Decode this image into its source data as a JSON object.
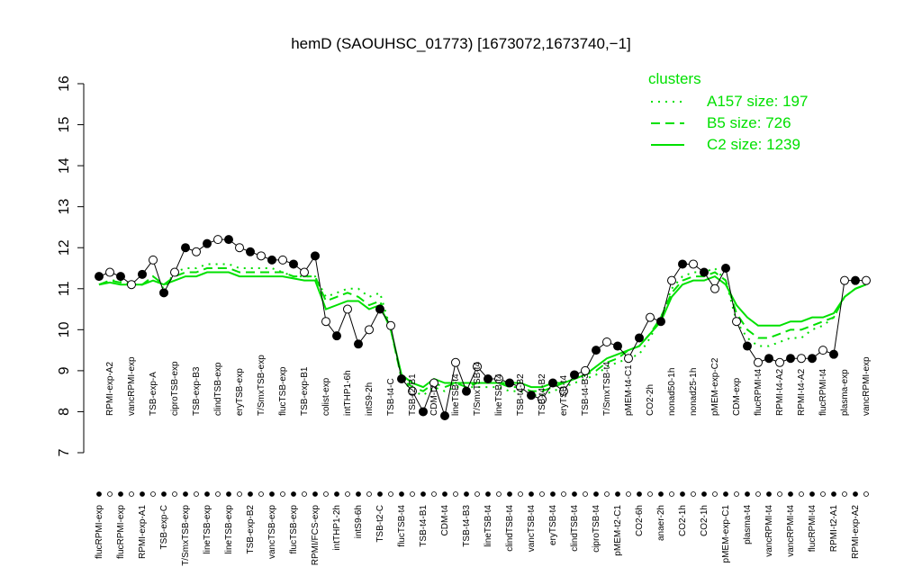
{
  "chart_data": {
    "type": "line",
    "title": "hemD (SAOUHSC_01773) [1673072,1673740,−1]",
    "categories": [
      "flucRPMI-exp",
      "RPMI-exp-A2",
      "flucRPMI-exp",
      "vancRPMI-exp",
      "RPMI-exp-A1",
      "TSB-exp-A",
      "TSB-exp-C",
      "ciproTSB-exp",
      "T/SmxTSB-exp",
      "TSB-exp-B3",
      "lineTSB-exp",
      "clindTSB-exp",
      "lineTSB-exp",
      "eryTSB-exp",
      "TSB-exp-B2",
      "T/SmxTSB-exp",
      "vancTSB-exp",
      "flucTSB-exp",
      "flucTSB-exp",
      "TSB-exp-B1",
      "RPMI/FCS-exp",
      "colist-exp",
      "intTHP1-2h",
      "intTHP1-6h",
      "intS9-6h",
      "intS9-2h",
      "TSB-t2-C",
      "TSB-t4-C",
      "flucTSB-t4",
      "TSB-t2-B1",
      "TSB-t4-B1",
      "CDM-t2",
      "CDM-t4",
      "lineTSB-t4",
      "TSB-t4-B3",
      "T/SmxTSB-t4",
      "lineTSB-t4",
      "lineTSB-t4",
      "clindTSB-t4",
      "TSB-t4-B2",
      "vancTSB-t4",
      "TSB-t4-B2",
      "eryTSB-t4",
      "eryTSB-t4",
      "clindTSB-t4",
      "TSB-t4-B3",
      "ciproTSB-t4",
      "T/SmxTSB-t4",
      "pMEM-t2-C1",
      "pMEM-t4-C1",
      "CO2-6h",
      "CO2-2h",
      "anaer-2h",
      "nonad50-1h",
      "CO2-1h",
      "nonad25-1h",
      "CO2-1h",
      "pMEM-exp-C2",
      "pMEM-exp-C1",
      "CDM-exp",
      "plasma-t4",
      "flucRPMI-t4",
      "vancRPMI-t4",
      "RPMI-t4-A2",
      "vancRPMI-t4",
      "RPMI-t4-A2",
      "flucRPMI-t4",
      "flucRPMI-t4",
      "RPMI-t2-A1",
      "plasma-exp",
      "RPMI-exp-A2",
      "vancRPMI-exp"
    ],
    "values": [
      11.3,
      11.4,
      11.3,
      11.1,
      11.35,
      11.7,
      10.9,
      11.4,
      12.0,
      11.9,
      12.1,
      12.2,
      12.2,
      12.0,
      11.9,
      11.8,
      11.7,
      11.7,
      11.6,
      11.4,
      11.8,
      10.2,
      9.85,
      10.5,
      9.65,
      10.0,
      10.5,
      10.1,
      8.8,
      8.5,
      8.0,
      8.7,
      7.9,
      9.2,
      8.5,
      9.1,
      8.8,
      8.8,
      8.7,
      8.6,
      8.4,
      8.3,
      8.7,
      8.5,
      8.9,
      9.0,
      9.5,
      9.7,
      9.6,
      9.3,
      9.8,
      10.3,
      10.2,
      11.2,
      11.6,
      11.6,
      11.4,
      11.0,
      11.5,
      10.2,
      9.6,
      9.2,
      9.3,
      9.2,
      9.3,
      9.3,
      9.3,
      9.5,
      9.4,
      11.2,
      11.2,
      11.2
    ],
    "color": "#000000",
    "ylim": [
      7,
      16
    ],
    "yticks": [
      7,
      8,
      9,
      10,
      11,
      12,
      13,
      14,
      15,
      16
    ],
    "legend_title": "clusters",
    "legend_position": "top-right",
    "series": [
      {
        "name": "A157 size: 197",
        "color": "#00e000",
        "linestyle": "dotted",
        "values": [
          11.1,
          11.2,
          11.2,
          11.1,
          11.1,
          11.3,
          11.0,
          11.4,
          11.5,
          11.5,
          11.6,
          11.6,
          11.6,
          11.5,
          11.5,
          11.5,
          11.5,
          11.4,
          11.3,
          11.3,
          11.3,
          10.8,
          10.9,
          11.0,
          11.0,
          10.8,
          10.9,
          10.0,
          8.8,
          8.5,
          8.4,
          8.6,
          8.5,
          8.6,
          8.6,
          8.6,
          8.6,
          8.6,
          8.5,
          8.5,
          8.4,
          8.4,
          8.5,
          8.6,
          8.7,
          8.8,
          8.9,
          9.1,
          9.2,
          9.3,
          9.4,
          9.8,
          10.3,
          11.0,
          11.3,
          11.4,
          11.4,
          11.5,
          11.2,
          10.2,
          9.8,
          9.6,
          9.6,
          9.7,
          9.8,
          9.8,
          10.0,
          10.1,
          10.3,
          10.8,
          11.0,
          11.1
        ]
      },
      {
        "name": "B5 size: 726",
        "color": "#00e000",
        "linestyle": "dashed",
        "values": [
          11.1,
          11.2,
          11.15,
          11.1,
          11.1,
          11.3,
          11.1,
          11.3,
          11.4,
          11.4,
          11.5,
          11.5,
          11.5,
          11.4,
          11.4,
          11.4,
          11.4,
          11.4,
          11.3,
          11.3,
          11.3,
          10.7,
          10.8,
          10.9,
          10.8,
          10.6,
          10.7,
          10.0,
          8.8,
          8.6,
          8.5,
          8.7,
          8.6,
          8.7,
          8.6,
          8.7,
          8.7,
          8.7,
          8.6,
          8.6,
          8.5,
          8.5,
          8.6,
          8.7,
          8.8,
          8.9,
          9.0,
          9.2,
          9.3,
          9.5,
          9.6,
          9.9,
          10.3,
          10.9,
          11.2,
          11.3,
          11.3,
          11.4,
          11.2,
          10.4,
          10.0,
          9.8,
          9.8,
          9.9,
          10.0,
          10.0,
          10.1,
          10.2,
          10.3,
          10.8,
          11.0,
          11.1
        ]
      },
      {
        "name": "C2 size: 1239",
        "color": "#00e000",
        "linestyle": "solid",
        "values": [
          11.1,
          11.15,
          11.1,
          11.1,
          11.1,
          11.2,
          11.1,
          11.2,
          11.3,
          11.3,
          11.4,
          11.4,
          11.4,
          11.3,
          11.3,
          11.3,
          11.3,
          11.3,
          11.25,
          11.2,
          11.2,
          10.5,
          10.6,
          10.7,
          10.7,
          10.5,
          10.6,
          10.0,
          8.9,
          8.7,
          8.6,
          8.8,
          8.7,
          8.7,
          8.7,
          8.7,
          8.7,
          8.7,
          8.7,
          8.7,
          8.6,
          8.6,
          8.7,
          8.7,
          8.8,
          8.9,
          9.1,
          9.3,
          9.4,
          9.5,
          9.6,
          9.9,
          10.2,
          10.8,
          11.1,
          11.2,
          11.2,
          11.3,
          11.1,
          10.6,
          10.3,
          10.1,
          10.1,
          10.1,
          10.2,
          10.2,
          10.3,
          10.3,
          10.4,
          10.8,
          11.0,
          11.1
        ]
      }
    ]
  }
}
